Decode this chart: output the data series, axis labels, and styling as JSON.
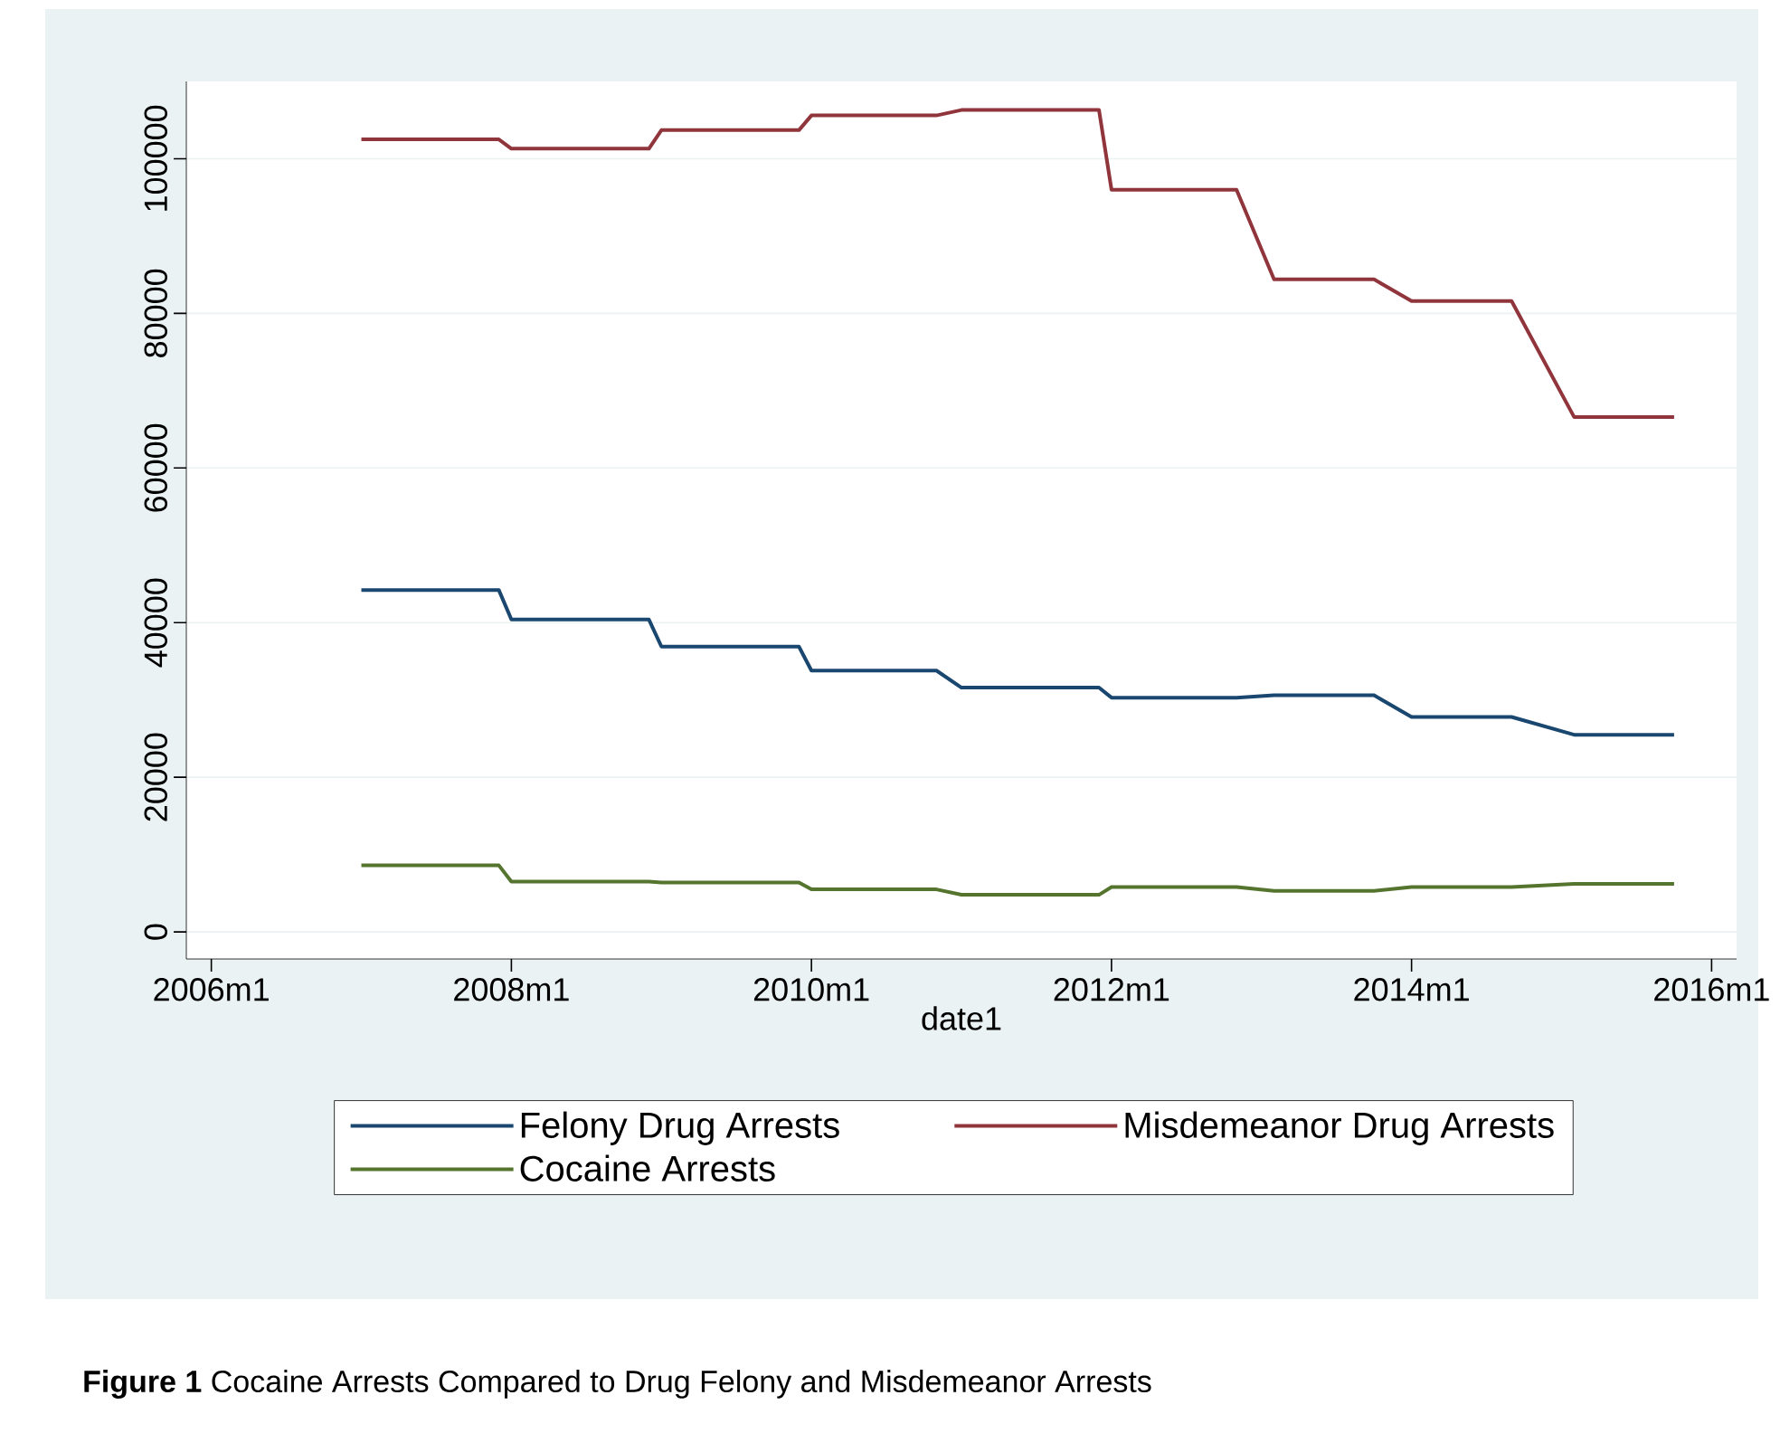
{
  "chart_data": {
    "type": "line",
    "xlabel": "date1",
    "annotations": [
      "**Figure 1** Cocaine Arrests Compared to Drug Felony and Misdemeanor Arrests"
    ],
    "x": [
      "2007-01",
      "2007-12",
      "2008-01",
      "2008-12",
      "2009-01",
      "2009-12",
      "2010-01",
      "2010-11",
      "2011-01",
      "2011-12",
      "2012-01",
      "2012-11",
      "2013-02",
      "2013-10",
      "2014-01",
      "2014-09",
      "2015-02",
      "2015-10"
    ],
    "series": [
      {
        "name": "Felony Drug Arrests",
        "color": "#1a476f",
        "values": [
          44200,
          44200,
          40400,
          40400,
          36900,
          36900,
          33800,
          33800,
          31600,
          31600,
          30300,
          30300,
          30600,
          30600,
          27800,
          27800,
          25500,
          25500
        ]
      },
      {
        "name": "Misdemeanor Drug Arrests",
        "color": "#90353b",
        "values": [
          102500,
          102500,
          101300,
          101300,
          103700,
          103700,
          105600,
          105600,
          106300,
          106300,
          96000,
          96000,
          84400,
          84400,
          81600,
          81600,
          66600,
          66600
        ]
      },
      {
        "name": "Cocaine Arrests",
        "color": "#55752f",
        "values": [
          8600,
          8600,
          6500,
          6500,
          6400,
          6400,
          5500,
          5500,
          4800,
          4800,
          5800,
          5800,
          5300,
          5300,
          5800,
          5800,
          6200,
          6200
        ]
      }
    ],
    "xlim": [
      "2005-11",
      "2016-03"
    ],
    "xticks": [
      {
        "value": "2006-01",
        "label": "2006m1"
      },
      {
        "value": "2008-01",
        "label": "2008m1"
      },
      {
        "value": "2010-01",
        "label": "2010m1"
      },
      {
        "value": "2012-01",
        "label": "2012m1"
      },
      {
        "value": "2014-01",
        "label": "2014m1"
      },
      {
        "value": "2016-01",
        "label": "2016m1"
      }
    ],
    "ylim": [
      -3500,
      110000
    ],
    "yticks": [
      0,
      20000,
      40000,
      60000,
      80000,
      100000
    ],
    "grid": "y",
    "legend": "bottom",
    "marker": "none",
    "line_style": "solid"
  }
}
